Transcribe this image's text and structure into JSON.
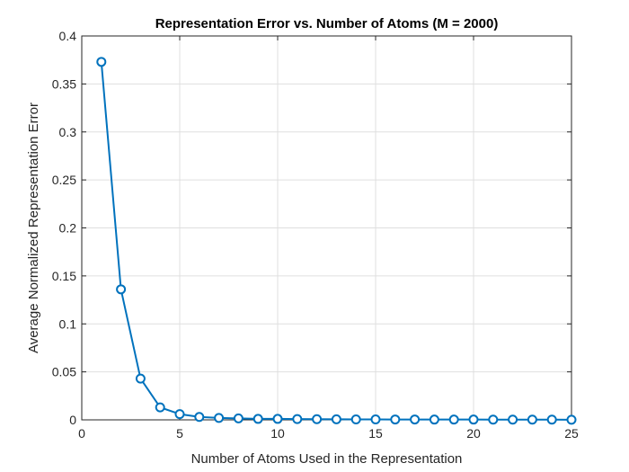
{
  "chart_data": {
    "type": "line",
    "title": "Representation Error vs. Number of Atoms (M = 2000)",
    "xlabel": "Number of Atoms Used in the Representation",
    "ylabel": "Average Normalized Representation Error",
    "xlim": [
      0,
      25
    ],
    "ylim": [
      0,
      0.4
    ],
    "x_ticks": [
      0,
      5,
      10,
      15,
      20,
      25
    ],
    "y_ticks": [
      0,
      0.05,
      0.1,
      0.15,
      0.2,
      0.25,
      0.3,
      0.35,
      0.4
    ],
    "x_tick_labels": [
      "0",
      "5",
      "10",
      "15",
      "20",
      "25"
    ],
    "y_tick_labels": [
      "0",
      "0.05",
      "0.1",
      "0.15",
      "0.2",
      "0.25",
      "0.3",
      "0.35",
      "0.4"
    ],
    "grid": true,
    "legend": "none",
    "marker": "circle",
    "line_color": "#0072BD",
    "series": [
      {
        "x": [
          1,
          2,
          3,
          4,
          5,
          6,
          7,
          8,
          9,
          10,
          11,
          12,
          13,
          14,
          15,
          16,
          17,
          18,
          19,
          20,
          21,
          22,
          23,
          24,
          25
        ],
        "values": [
          0.373,
          0.136,
          0.043,
          0.013,
          0.006,
          0.003,
          0.002,
          0.0015,
          0.001,
          0.001,
          0.0008,
          0.0007,
          0.0006,
          0.0005,
          0.0005,
          0.0004,
          0.0004,
          0.0003,
          0.0003,
          0.0003,
          0.0002,
          0.0002,
          0.0002,
          0.0002,
          0.0001
        ]
      }
    ]
  }
}
